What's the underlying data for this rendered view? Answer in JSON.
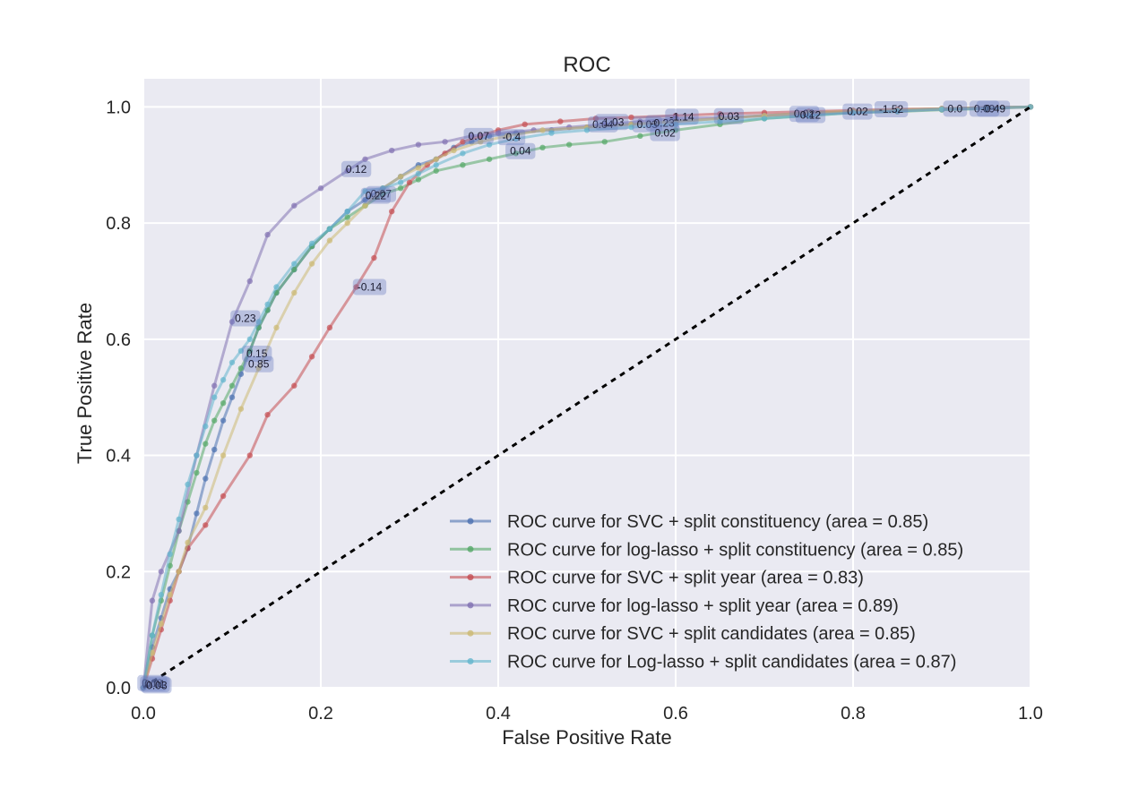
{
  "chart_data": {
    "type": "line",
    "title": "ROC",
    "xlabel": "False Positive Rate",
    "ylabel": "True Positive Rate",
    "xlim": [
      0.0,
      1.0
    ],
    "ylim": [
      0.0,
      1.05
    ],
    "grid": true,
    "legend_position": "lower-right",
    "xticks": [
      0.0,
      0.2,
      0.4,
      0.6,
      0.8,
      1.0
    ],
    "xtick_labels": [
      "0.0",
      "0.2",
      "0.4",
      "0.6",
      "0.8",
      "1.0"
    ],
    "yticks": [
      0.0,
      0.2,
      0.4,
      0.6,
      0.8,
      1.0
    ],
    "ytick_labels": [
      "0.0",
      "0.2",
      "0.4",
      "0.6",
      "0.8",
      "1.0"
    ],
    "baseline": {
      "x": [
        0.0,
        1.0
      ],
      "y": [
        0.0,
        1.0
      ],
      "color": "#000000"
    },
    "series": [
      {
        "name": "ROC curve for SVC + split constituency (area = 0.85)",
        "color": "#4c72b0",
        "x": [
          0.0,
          0.01,
          0.02,
          0.03,
          0.04,
          0.05,
          0.06,
          0.07,
          0.08,
          0.09,
          0.1,
          0.11,
          0.12,
          0.13,
          0.14,
          0.15,
          0.17,
          0.19,
          0.21,
          0.23,
          0.25,
          0.27,
          0.29,
          0.31,
          0.33,
          0.35,
          0.37,
          0.39,
          0.42,
          0.46,
          0.5,
          0.55,
          0.6,
          0.65,
          0.7,
          0.75,
          0.8,
          0.85,
          0.9,
          0.95,
          1.0
        ],
        "y": [
          0.0,
          0.07,
          0.12,
          0.17,
          0.2,
          0.24,
          0.3,
          0.36,
          0.41,
          0.46,
          0.5,
          0.54,
          0.58,
          0.62,
          0.65,
          0.68,
          0.72,
          0.76,
          0.79,
          0.82,
          0.84,
          0.86,
          0.88,
          0.9,
          0.91,
          0.93,
          0.94,
          0.95,
          0.955,
          0.96,
          0.965,
          0.97,
          0.975,
          0.98,
          0.985,
          0.99,
          0.992,
          0.995,
          0.997,
          0.999,
          1.0
        ]
      },
      {
        "name": "ROC curve for log-lasso + split constituency (area = 0.85)",
        "color": "#55a868",
        "x": [
          0.0,
          0.01,
          0.02,
          0.03,
          0.04,
          0.05,
          0.06,
          0.07,
          0.08,
          0.09,
          0.1,
          0.11,
          0.12,
          0.13,
          0.14,
          0.15,
          0.17,
          0.19,
          0.21,
          0.23,
          0.25,
          0.27,
          0.29,
          0.31,
          0.33,
          0.36,
          0.39,
          0.42,
          0.45,
          0.48,
          0.52,
          0.56,
          0.6,
          0.65,
          0.7,
          0.75,
          0.8,
          0.85,
          0.9,
          0.95,
          1.0
        ],
        "y": [
          0.0,
          0.09,
          0.15,
          0.21,
          0.27,
          0.32,
          0.37,
          0.42,
          0.46,
          0.49,
          0.52,
          0.55,
          0.58,
          0.62,
          0.65,
          0.68,
          0.72,
          0.76,
          0.79,
          0.81,
          0.83,
          0.85,
          0.86,
          0.875,
          0.89,
          0.9,
          0.91,
          0.92,
          0.93,
          0.935,
          0.94,
          0.95,
          0.96,
          0.97,
          0.98,
          0.985,
          0.99,
          0.992,
          0.995,
          0.997,
          1.0
        ]
      },
      {
        "name": "ROC curve for SVC + split year (area = 0.83)",
        "color": "#c44e52",
        "x": [
          0.0,
          0.01,
          0.02,
          0.03,
          0.04,
          0.05,
          0.07,
          0.09,
          0.12,
          0.14,
          0.17,
          0.19,
          0.21,
          0.24,
          0.26,
          0.28,
          0.3,
          0.32,
          0.34,
          0.36,
          0.38,
          0.4,
          0.43,
          0.47,
          0.51,
          0.55,
          0.6,
          0.65,
          0.7,
          0.75,
          0.8,
          0.85,
          0.9,
          0.95,
          1.0
        ],
        "y": [
          0.0,
          0.05,
          0.1,
          0.15,
          0.2,
          0.24,
          0.28,
          0.33,
          0.4,
          0.47,
          0.52,
          0.57,
          0.62,
          0.69,
          0.74,
          0.82,
          0.87,
          0.9,
          0.92,
          0.94,
          0.95,
          0.96,
          0.97,
          0.975,
          0.98,
          0.982,
          0.985,
          0.988,
          0.99,
          0.992,
          0.994,
          0.996,
          0.997,
          0.999,
          1.0
        ]
      },
      {
        "name": "ROC curve for log-lasso + split year (area = 0.89)",
        "color": "#8172b2",
        "x": [
          0.0,
          0.01,
          0.02,
          0.04,
          0.06,
          0.08,
          0.1,
          0.12,
          0.14,
          0.17,
          0.2,
          0.23,
          0.25,
          0.28,
          0.31,
          0.34,
          0.37,
          0.4,
          0.44,
          0.48,
          0.52,
          0.56,
          0.6,
          0.65,
          0.7,
          0.75,
          0.8,
          0.85,
          0.9,
          0.95,
          1.0
        ],
        "y": [
          0.0,
          0.15,
          0.2,
          0.27,
          0.4,
          0.52,
          0.63,
          0.7,
          0.78,
          0.83,
          0.86,
          0.89,
          0.91,
          0.925,
          0.935,
          0.94,
          0.95,
          0.955,
          0.96,
          0.965,
          0.97,
          0.975,
          0.98,
          0.982,
          0.985,
          0.988,
          0.99,
          0.993,
          0.996,
          0.998,
          1.0
        ]
      },
      {
        "name": "ROC curve for SVC + split candidates (area = 0.85)",
        "color": "#ccb974",
        "x": [
          0.0,
          0.01,
          0.02,
          0.03,
          0.04,
          0.05,
          0.07,
          0.09,
          0.11,
          0.13,
          0.15,
          0.17,
          0.19,
          0.21,
          0.23,
          0.25,
          0.27,
          0.29,
          0.31,
          0.33,
          0.35,
          0.38,
          0.41,
          0.45,
          0.5,
          0.55,
          0.6,
          0.65,
          0.7,
          0.75,
          0.8,
          0.85,
          0.9,
          0.95,
          1.0
        ],
        "y": [
          0.0,
          0.06,
          0.11,
          0.16,
          0.2,
          0.25,
          0.31,
          0.4,
          0.48,
          0.55,
          0.62,
          0.68,
          0.73,
          0.77,
          0.8,
          0.83,
          0.86,
          0.88,
          0.895,
          0.91,
          0.925,
          0.94,
          0.95,
          0.96,
          0.965,
          0.97,
          0.975,
          0.98,
          0.985,
          0.99,
          0.993,
          0.995,
          0.997,
          0.999,
          1.0
        ]
      },
      {
        "name": "ROC curve for Log-lasso + split candidates (area = 0.87)",
        "color": "#64b5cd",
        "x": [
          0.0,
          0.01,
          0.02,
          0.03,
          0.04,
          0.05,
          0.06,
          0.07,
          0.08,
          0.09,
          0.1,
          0.11,
          0.12,
          0.13,
          0.14,
          0.15,
          0.17,
          0.19,
          0.21,
          0.23,
          0.25,
          0.27,
          0.29,
          0.31,
          0.33,
          0.36,
          0.39,
          0.42,
          0.46,
          0.5,
          0.55,
          0.6,
          0.65,
          0.7,
          0.75,
          0.8,
          0.85,
          0.9,
          0.95,
          1.0
        ],
        "y": [
          0.0,
          0.09,
          0.16,
          0.23,
          0.29,
          0.35,
          0.4,
          0.45,
          0.5,
          0.53,
          0.56,
          0.58,
          0.6,
          0.63,
          0.66,
          0.69,
          0.73,
          0.765,
          0.79,
          0.82,
          0.855,
          0.86,
          0.87,
          0.885,
          0.9,
          0.92,
          0.935,
          0.945,
          0.955,
          0.96,
          0.965,
          0.97,
          0.975,
          0.98,
          0.985,
          0.99,
          0.993,
          0.996,
          0.998,
          1.0
        ]
      }
    ],
    "annotations": [
      {
        "text": "0.07",
        "x": 0.378,
        "y": 0.95
      },
      {
        "text": "-0.4",
        "x": 0.415,
        "y": 0.948
      },
      {
        "text": "0.04",
        "x": 0.425,
        "y": 0.924
      },
      {
        "text": "0.04",
        "x": 0.518,
        "y": 0.97
      },
      {
        "text": "-1.03",
        "x": 0.528,
        "y": 0.974
      },
      {
        "text": "0.03",
        "x": 0.568,
        "y": 0.97
      },
      {
        "text": "-0.23",
        "x": 0.585,
        "y": 0.972
      },
      {
        "text": "0.02",
        "x": 0.588,
        "y": 0.955
      },
      {
        "text": "-1.14",
        "x": 0.607,
        "y": 0.983
      },
      {
        "text": "0.03",
        "x": 0.66,
        "y": 0.984
      },
      {
        "text": "0.02",
        "x": 0.745,
        "y": 0.988
      },
      {
        "text": "0.12",
        "x": 0.752,
        "y": 0.986
      },
      {
        "text": "0.02",
        "x": 0.805,
        "y": 0.992
      },
      {
        "text": "-1.52",
        "x": 0.843,
        "y": 0.996
      },
      {
        "text": "0.0",
        "x": 0.915,
        "y": 0.997
      },
      {
        "text": "0.09",
        "x": 0.948,
        "y": 0.997
      },
      {
        "text": "-0.49",
        "x": 0.958,
        "y": 0.997
      },
      {
        "text": "0.12",
        "x": 0.24,
        "y": 0.893
      },
      {
        "text": "0.07",
        "x": 0.268,
        "y": 0.85
      },
      {
        "text": "0.22",
        "x": 0.262,
        "y": 0.847
      },
      {
        "text": "-0.14",
        "x": 0.255,
        "y": 0.69
      },
      {
        "text": "0.23",
        "x": 0.115,
        "y": 0.636
      },
      {
        "text": "0.15",
        "x": 0.128,
        "y": 0.575
      },
      {
        "text": "0.85",
        "x": 0.13,
        "y": 0.557
      },
      {
        "text": "0.08",
        "x": 0.01,
        "y": 0.008
      },
      {
        "text": "0.01",
        "x": 0.013,
        "y": 0.006
      },
      {
        "text": "0.03",
        "x": 0.015,
        "y": 0.004
      }
    ]
  }
}
